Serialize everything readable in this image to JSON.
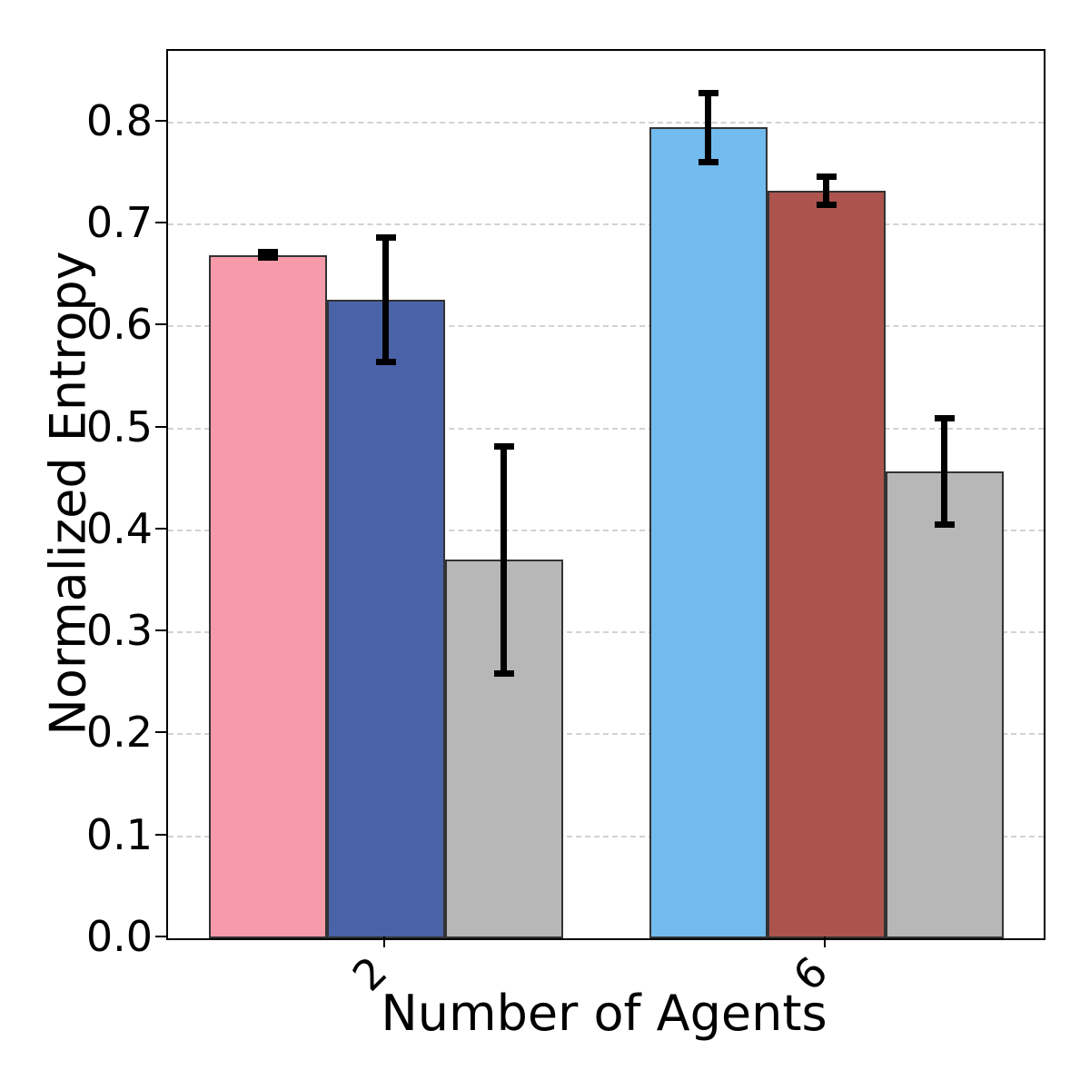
{
  "chart_data": {
    "type": "bar",
    "title": "",
    "xlabel": "Number of Agents",
    "ylabel": "Normalized Entropy",
    "ylim": [
      0,
      0.87
    ],
    "yticks": [
      0.0,
      0.1,
      0.2,
      0.3,
      0.4,
      0.5,
      0.6,
      0.7,
      0.8
    ],
    "grid": "horizontal-dashed",
    "legend": "none",
    "colors": {
      "bar_edge": "#333333",
      "gridline": "#d2d2d2",
      "spine": "#000000",
      "error_bar": "#000000"
    },
    "groups": [
      {
        "category": "2",
        "bars": [
          {
            "value": 0.67,
            "error": 0.003,
            "color": "#f79bab",
            "color_name": "pink"
          },
          {
            "value": 0.626,
            "error": 0.061,
            "color": "#4a62a8",
            "color_name": "dark-blue"
          },
          {
            "value": 0.371,
            "error": 0.111,
            "color": "#b7b7b7",
            "color_name": "gray"
          }
        ]
      },
      {
        "category": "6",
        "bars": [
          {
            "value": 0.795,
            "error": 0.034,
            "color": "#72bbee",
            "color_name": "light-blue"
          },
          {
            "value": 0.733,
            "error": 0.014,
            "color": "#ac534e",
            "color_name": "brick-red"
          },
          {
            "value": 0.458,
            "error": 0.052,
            "color": "#b7b7b7",
            "color_name": "gray"
          }
        ]
      }
    ]
  }
}
